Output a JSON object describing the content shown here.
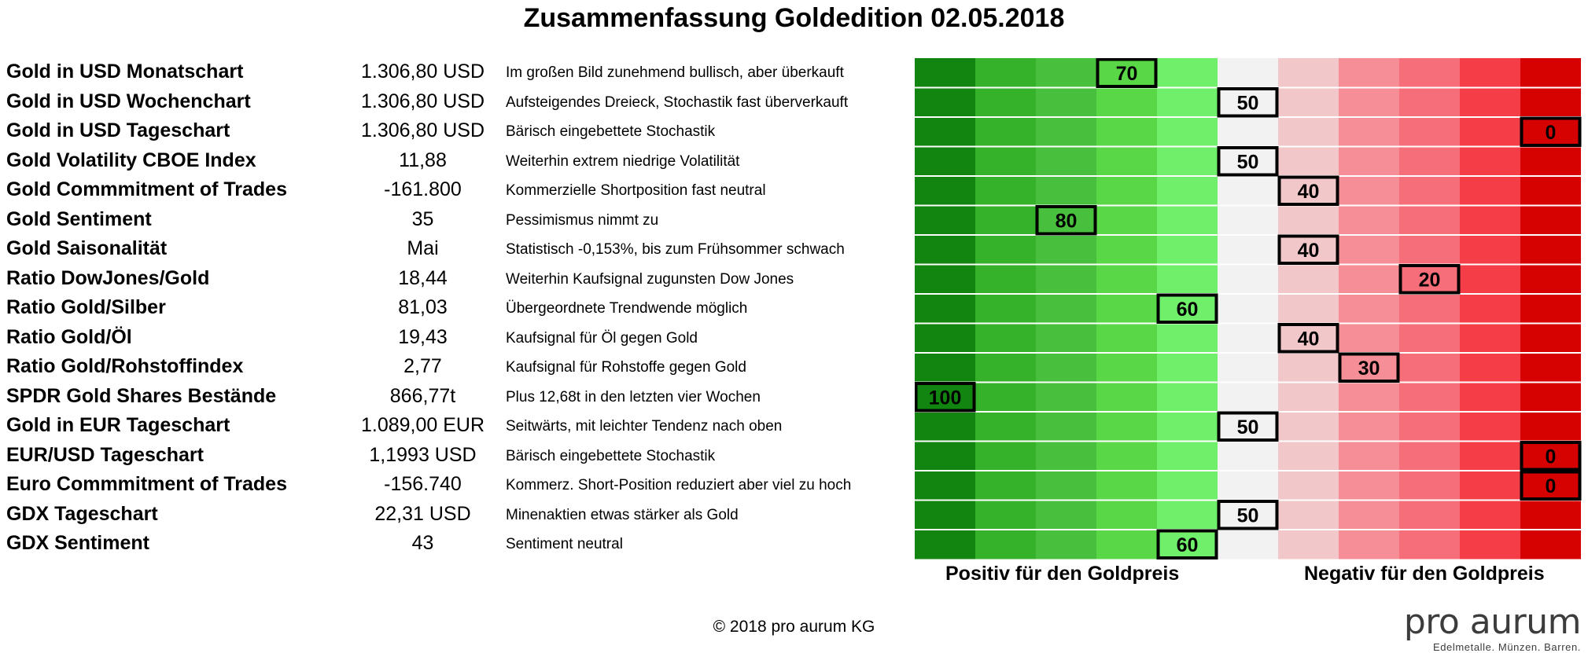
{
  "title": "Zusammenfassung Goldedition 02.05.2018",
  "colors": {
    "scale_cells": [
      "#11850f",
      "#35b22a",
      "#48c03d",
      "#5ad747",
      "#70f06a",
      "#f2f2f2",
      "#f2c7ca",
      "#f58e96",
      "#f66e79",
      "#f53d47",
      "#d60101"
    ],
    "row_separator": "#ffffff",
    "marker_border": "#000000"
  },
  "chart_data": {
    "type": "table",
    "scale": {
      "min": 0,
      "max": 100,
      "step": 10,
      "direction": "100 left (positive) to 0 right (negative)"
    },
    "rows": [
      {
        "name": "Gold in USD Monatschart",
        "value": "1.306,80 USD",
        "comment": "Im großen Bild zunehmend bullisch,  aber überkauft",
        "score": 70
      },
      {
        "name": "Gold in USD Wochenchart",
        "value": "1.306,80 USD",
        "comment": "Aufsteigendes Dreieck, Stochastik fast überverkauft",
        "score": 50
      },
      {
        "name": "Gold in USD Tageschart",
        "value": "1.306,80 USD",
        "comment": "Bärisch eingebettete Stochastik",
        "score": 0
      },
      {
        "name": "Gold Volatility CBOE Index",
        "value": "11,88",
        "comment": "Weiterhin extrem niedrige Volatilität",
        "score": 50
      },
      {
        "name": "Gold Commmitment of Trades",
        "value": "-161.800",
        "comment": "Kommerzielle Shortposition fast neutral",
        "score": 40
      },
      {
        "name": "Gold Sentiment",
        "value": "35",
        "comment": "Pessimismus nimmt zu",
        "score": 80
      },
      {
        "name": "Gold Saisonalität",
        "value": "Mai",
        "comment": "Statistisch -0,153%, bis zum Frühsommer schwach",
        "score": 40
      },
      {
        "name": "Ratio DowJones/Gold",
        "value": "18,44",
        "comment": "Weiterhin Kaufsignal zugunsten Dow Jones",
        "score": 20
      },
      {
        "name": "Ratio Gold/Silber",
        "value": "81,03",
        "comment": "Übergeordnete Trendwende möglich",
        "score": 60
      },
      {
        "name": "Ratio Gold/Öl",
        "value": "19,43",
        "comment": "Kaufsignal für Öl gegen Gold",
        "score": 40
      },
      {
        "name": "Ratio Gold/Rohstoffindex",
        "value": "2,77",
        "comment": "Kaufsignal für Rohstoffe gegen Gold",
        "score": 30
      },
      {
        "name": "SPDR Gold Shares Bestände",
        "value": "866,77t",
        "comment": "Plus 12,68t in den letzten vier Wochen",
        "score": 100
      },
      {
        "name": "Gold in EUR Tageschart",
        "value": "1.089,00 EUR",
        "comment": "Seitwärts, mit leichter Tendenz nach oben",
        "score": 50
      },
      {
        "name": "EUR/USD Tageschart",
        "value": "1,1993 USD",
        "comment": "Bärisch eingebettete Stochastik",
        "score": 0
      },
      {
        "name": "Euro Commmitment of Trades",
        "value": "-156.740",
        "comment": "Kommerz. Short-Position reduziert aber viel zu hoch",
        "score": 0
      },
      {
        "name": "GDX Tageschart",
        "value": "22,31 USD",
        "comment": "Minenaktien etwas stärker als Gold",
        "score": 50
      },
      {
        "name": "GDX Sentiment",
        "value": "43",
        "comment": "Sentiment neutral",
        "score": 60
      }
    ],
    "positive_label": "Positiv für den Goldpreis",
    "negative_label": "Negativ für den Goldpreis"
  },
  "footer": {
    "copyright": "© 2018 pro aurum KG",
    "logo_name": "pro aurum",
    "logo_tagline": "Edelmetalle. Münzen. Barren."
  }
}
